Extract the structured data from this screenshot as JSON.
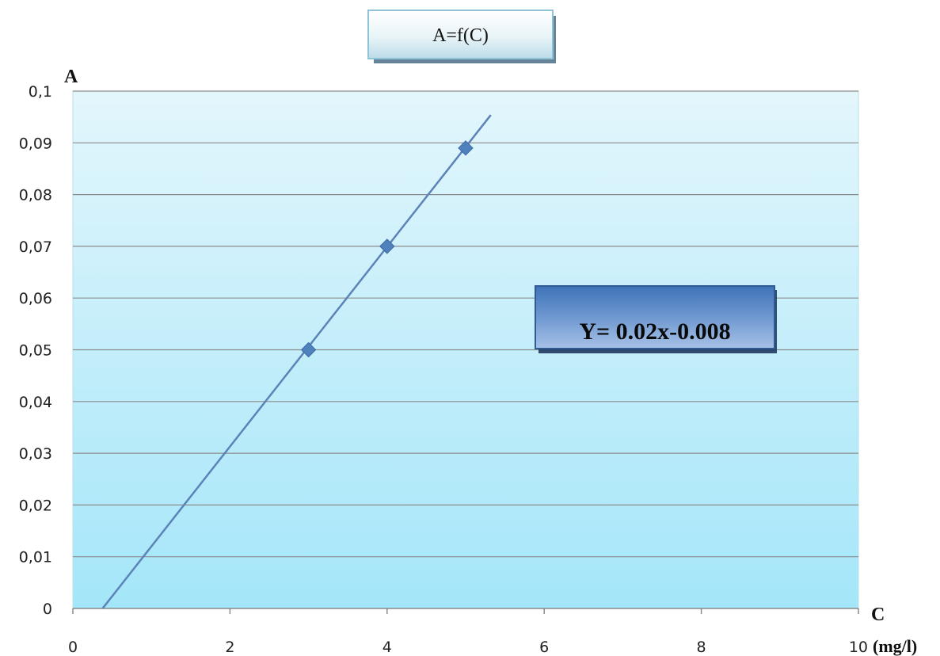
{
  "chart_data": {
    "type": "scatter",
    "title": "A=f(C)",
    "ylabel": "A",
    "xlabel": "C",
    "x_unit": "(mg/l)",
    "xlim": [
      0,
      10
    ],
    "ylim": [
      0,
      0.1
    ],
    "x_ticks": [
      "0",
      "2",
      "4",
      "6",
      "8",
      "10"
    ],
    "y_ticks": [
      "0",
      "0,01",
      "0,02",
      "0,03",
      "0,04",
      "0,05",
      "0,06",
      "0,07",
      "0,08",
      "0,09",
      "0,1"
    ],
    "grid": "horizontal",
    "series": [
      {
        "x": [
          3,
          4,
          5
        ],
        "y": [
          0.05,
          0.07,
          0.089
        ],
        "color": "#4f81bd"
      }
    ],
    "trendline": {
      "x_start": 0.38,
      "x_end": 5.32,
      "slope": 0.0193,
      "intercept": -0.0073,
      "color": "#5b83b8"
    },
    "equation": "Y= 0.02x-0.008",
    "plot_gradient": [
      "#e3f6fc",
      "#a4e6f9"
    ],
    "marker_color": "#4f81bd"
  }
}
